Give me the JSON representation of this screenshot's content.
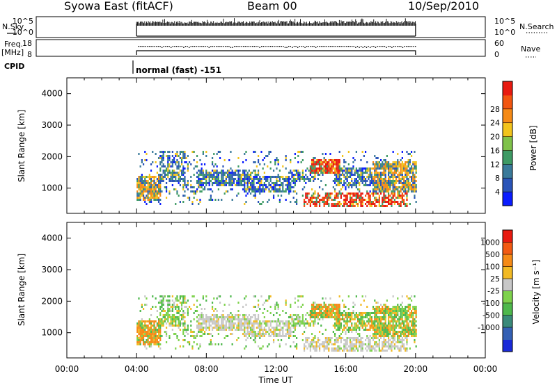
{
  "header": {
    "station": "Syowa East (fitACF)",
    "beam": "Beam 00",
    "date": "10/Sep/2010"
  },
  "strips": {
    "nsky_label": "N.Sky",
    "nsky_ticks": [
      "10^5",
      "10^0"
    ],
    "nsearch_label": "N.Search",
    "nsearch_ticks": [
      "10^5",
      "10^0"
    ],
    "freq_label": "Freq.",
    "freq_unit": "[MHz]",
    "freq_ticks": [
      "18",
      "8"
    ],
    "nave_label": "Nave",
    "nave_ticks": [
      "60",
      "0"
    ],
    "cpid_label": "CPID",
    "cpid_text": "normal (fast) -151"
  },
  "colors": {
    "power_scale": [
      "#0a1cff",
      "#2a54b8",
      "#3a7a9a",
      "#3e9a64",
      "#7fc24a",
      "#f2c41c",
      "#f58a16",
      "#f25510",
      "#e81a10"
    ],
    "velocity_scale": [
      "#1a2ad8",
      "#3460b4",
      "#3a8a7a",
      "#4eb84c",
      "#7ed24c",
      "#c8c8c8",
      "#f2ba24",
      "#f58a16",
      "#f25a12",
      "#e81a10"
    ]
  },
  "chart_data": [
    {
      "type": "heatmap",
      "panel": "power",
      "xlabel": "",
      "ylabel": "Slant Range [km]",
      "x_ticks": [
        "00:00",
        "04:00",
        "08:00",
        "12:00",
        "16:00",
        "20:00",
        "00:00"
      ],
      "x_range_hours": [
        0,
        24
      ],
      "data_range_hours": [
        4,
        20
      ],
      "y_ticks": [
        "1000",
        "2000",
        "3000",
        "4000"
      ],
      "y_range_km": [
        200,
        4500
      ],
      "colorbar_label": "Power [dB]",
      "colorbar_ticks": [
        "4",
        "8",
        "12",
        "16",
        "20",
        "24",
        "28"
      ],
      "scale_range": [
        0,
        30
      ]
    },
    {
      "type": "heatmap",
      "panel": "velocity",
      "xlabel": "Time UT",
      "ylabel": "Slant Range [km]",
      "x_ticks": [
        "00:00",
        "04:00",
        "08:00",
        "12:00",
        "16:00",
        "20:00",
        "00:00"
      ],
      "x_range_hours": [
        0,
        24
      ],
      "data_range_hours": [
        4,
        20
      ],
      "y_ticks": [
        "1000",
        "2000",
        "3000",
        "4000"
      ],
      "y_range_km": [
        200,
        4500
      ],
      "colorbar_label": "Velocity [m s⁻¹]",
      "colorbar_ticks": [
        "1000",
        "500",
        "100",
        "25",
        "-25",
        "-100",
        "-500",
        "-1000"
      ]
    }
  ]
}
